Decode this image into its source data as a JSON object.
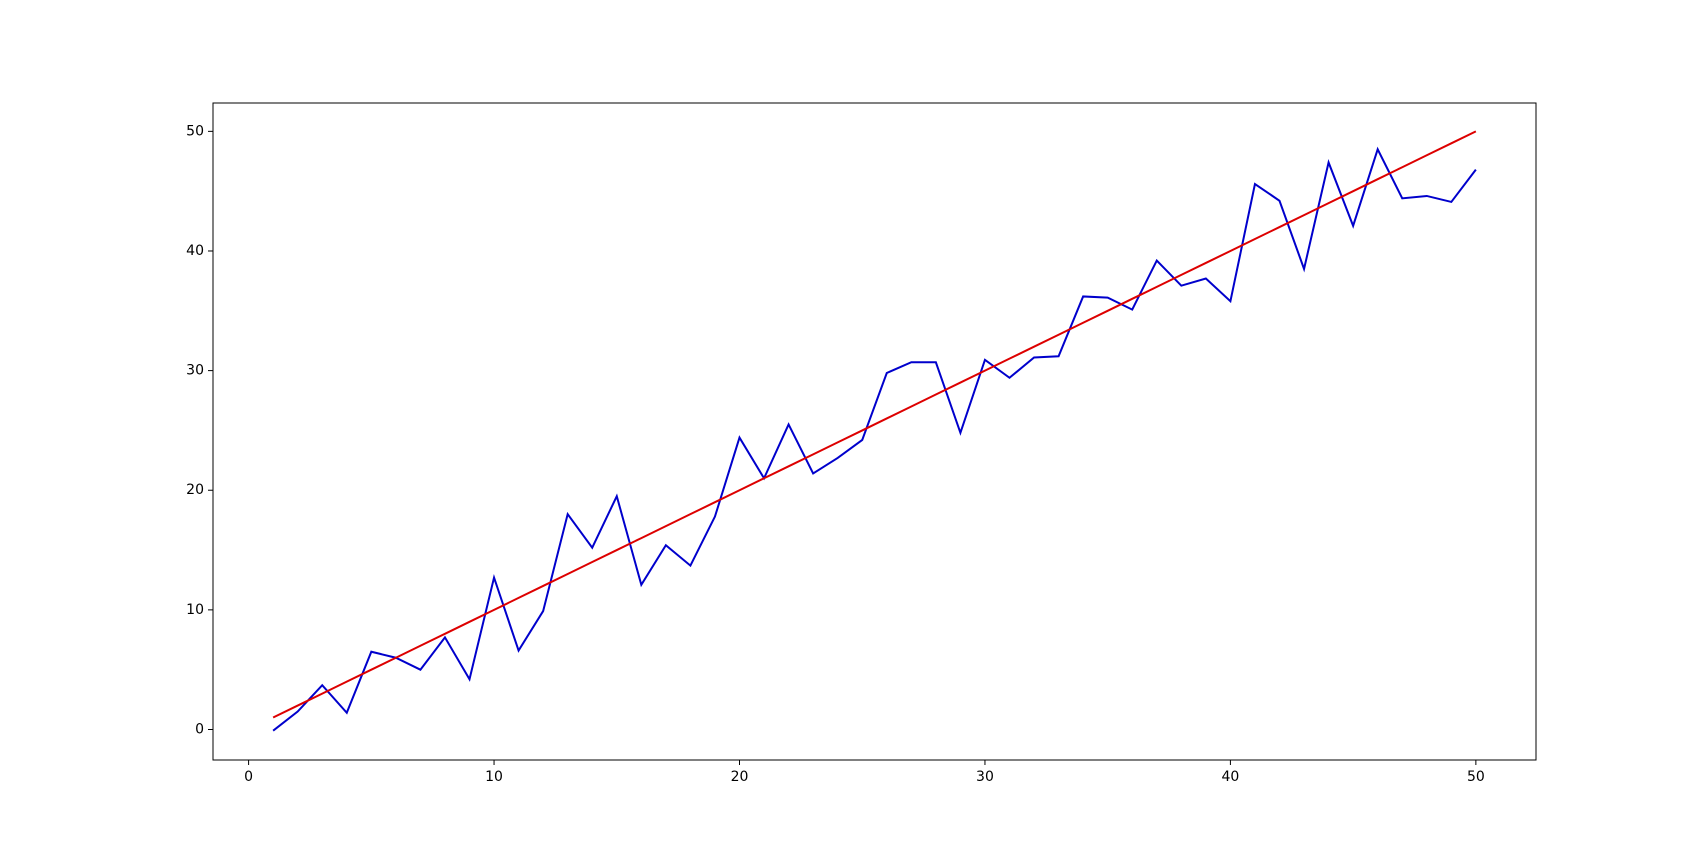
{
  "chart_data": {
    "type": "line",
    "x": [
      1,
      2,
      3,
      4,
      5,
      6,
      7,
      8,
      9,
      10,
      11,
      12,
      13,
      14,
      15,
      16,
      17,
      18,
      19,
      20,
      21,
      22,
      23,
      24,
      25,
      26,
      27,
      28,
      29,
      30,
      31,
      32,
      33,
      34,
      35,
      36,
      37,
      38,
      39,
      40,
      41,
      42,
      43,
      44,
      45,
      46,
      47,
      48,
      49,
      50
    ],
    "series": [
      {
        "color": "#0000cc",
        "values": [
          -0.1,
          1.5,
          3.7,
          1.4,
          6.5,
          6.0,
          5.0,
          7.7,
          4.2,
          12.7,
          6.6,
          9.9,
          18.0,
          15.2,
          19.5,
          12.1,
          15.4,
          13.7,
          17.8,
          24.4,
          21.0,
          25.5,
          21.4,
          22.7,
          24.2,
          29.8,
          30.7,
          30.7,
          24.8,
          30.9,
          29.4,
          31.1,
          31.2,
          36.2,
          36.1,
          35.1,
          39.2,
          37.1,
          37.7,
          35.8,
          45.6,
          44.2,
          38.5,
          47.4,
          42.1,
          48.5,
          44.4,
          44.6,
          44.1,
          46.8
        ]
      },
      {
        "color": "#dd0000",
        "values": [
          1,
          2,
          3,
          4,
          5,
          6,
          7,
          8,
          9,
          10,
          11,
          12,
          13,
          14,
          15,
          16,
          17,
          18,
          19,
          20,
          21,
          22,
          23,
          24,
          25,
          26,
          27,
          28,
          29,
          30,
          31,
          32,
          33,
          34,
          35,
          36,
          37,
          38,
          39,
          40,
          41,
          42,
          43,
          44,
          45,
          46,
          47,
          48,
          49,
          50
        ]
      }
    ],
    "xlim": [
      -1.45,
      52.45
    ],
    "ylim": [
      -2.55,
      52.37
    ],
    "xticks": [
      0,
      10,
      20,
      30,
      40,
      50
    ],
    "yticks": [
      0,
      10,
      20,
      30,
      40,
      50
    ],
    "grid": false
  }
}
